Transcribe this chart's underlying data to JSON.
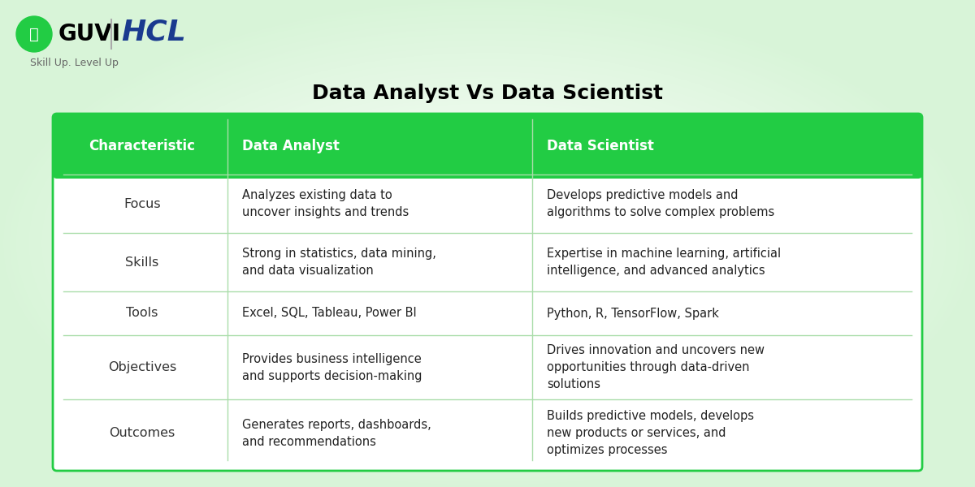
{
  "title": "Data Analyst Vs Data Scientist",
  "title_fontsize": 18,
  "background_color": "#ffffff",
  "header_bg_color": "#22cc44",
  "header_text_color": "#ffffff",
  "table_bg_color": "#ffffff",
  "border_color": "#22cc44",
  "divider_color": "#aaddaa",
  "cell_text_color": "#222222",
  "char_col_text_color": "#333333",
  "header_row": [
    "Characteristic",
    "Data Analyst",
    "Data Scientist"
  ],
  "rows": [
    {
      "characteristic": "Focus",
      "analyst": "Analyzes existing data to\nuncover insights and trends",
      "scientist": "Develops predictive models and\nalgorithms to solve complex problems"
    },
    {
      "characteristic": "Skills",
      "analyst": "Strong in statistics, data mining,\nand data visualization",
      "scientist": "Expertise in machine learning, artificial\nintelligence, and advanced analytics"
    },
    {
      "characteristic": "Tools",
      "analyst": "Excel, SQL, Tableau, Power BI",
      "scientist": "Python, R, TensorFlow, Spark"
    },
    {
      "characteristic": "Objectives",
      "analyst": "Provides business intelligence\nand supports decision-making",
      "scientist": "Drives innovation and uncovers new\nopportunities through data-driven\nsolutions"
    },
    {
      "characteristic": "Outcomes",
      "analyst": "Generates reports, dashboards,\nand recommendations",
      "scientist": "Builds predictive models, develops\nnew products or services, and\noptimizes processes"
    }
  ],
  "guvi_green": "#22cc44",
  "hcl_blue": "#1a3a8f",
  "tagline": "Skill Up. Level Up",
  "gradient_corner_color": "#d8f0d8"
}
